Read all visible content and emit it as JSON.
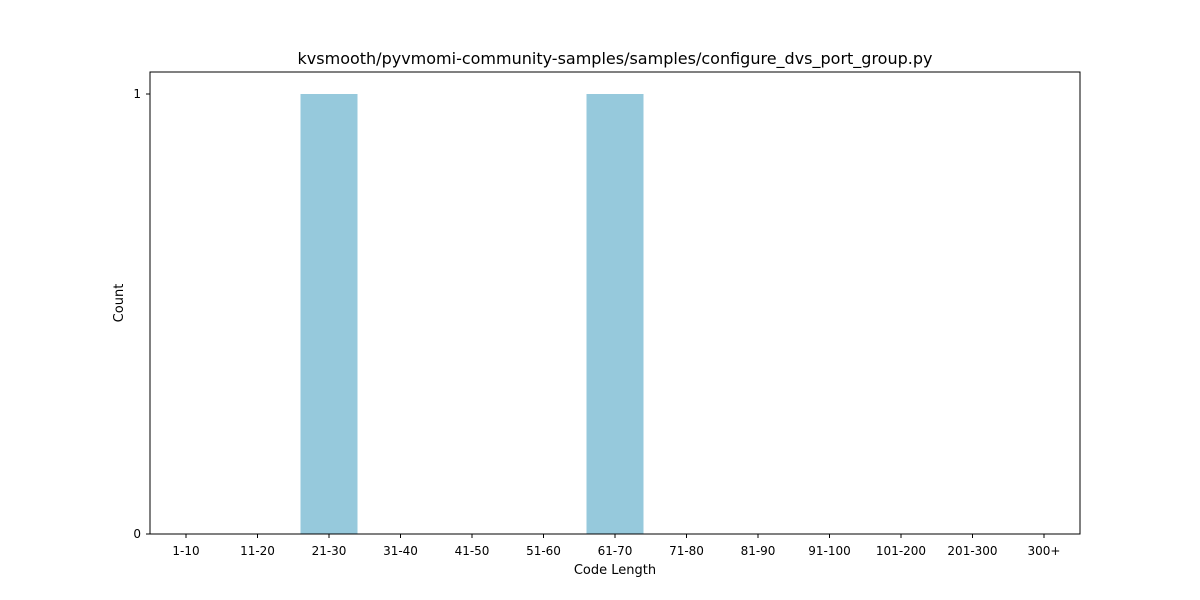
{
  "chart_data": {
    "type": "bar",
    "title": "kvsmooth/pyvmomi-community-samples/samples/configure_dvs_port_group.py",
    "xlabel": "Code Length",
    "ylabel": "Count",
    "categories": [
      "1-10",
      "11-20",
      "21-30",
      "31-40",
      "41-50",
      "51-60",
      "61-70",
      "71-80",
      "81-90",
      "91-100",
      "101-200",
      "201-300",
      "300+"
    ],
    "values": [
      0,
      0,
      1,
      0,
      0,
      0,
      1,
      0,
      0,
      0,
      0,
      0,
      0
    ],
    "ylim": [
      0,
      1
    ],
    "yticks": [
      0,
      1
    ],
    "grid": false,
    "bar_color": "#96c9dc"
  }
}
